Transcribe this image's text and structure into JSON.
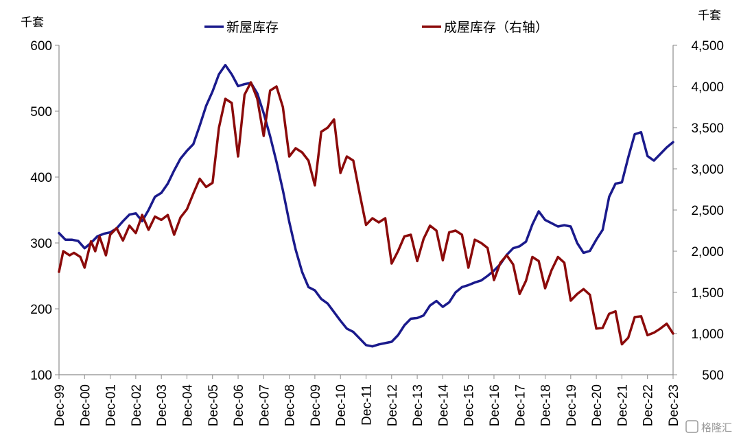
{
  "chart_data": {
    "type": "line",
    "left_unit": "千套",
    "right_unit": "千套",
    "y_left_lim": [
      100,
      600
    ],
    "y_right_lim": [
      500,
      4500
    ],
    "y_left_ticks": [
      100,
      200,
      300,
      400,
      500,
      600
    ],
    "y_right_ticks": [
      500,
      1000,
      1500,
      2000,
      2500,
      3000,
      3500,
      4000,
      4500
    ],
    "y_right_tick_labels": [
      "500",
      "1,000",
      "1,500",
      "2,000",
      "2,500",
      "3,000",
      "3,500",
      "4,000",
      "4,500"
    ],
    "x_ticks": [
      {
        "x": "1999-12",
        "label": "Dec-99"
      },
      {
        "x": "2000-12",
        "label": "Dec-00"
      },
      {
        "x": "2001-12",
        "label": "Dec-01"
      },
      {
        "x": "2002-12",
        "label": "Dec-02"
      },
      {
        "x": "2003-12",
        "label": "Dec-03"
      },
      {
        "x": "2004-12",
        "label": "Dec-04"
      },
      {
        "x": "2005-12",
        "label": "Dec-05"
      },
      {
        "x": "2006-12",
        "label": "Dec-06"
      },
      {
        "x": "2007-12",
        "label": "Dec-07"
      },
      {
        "x": "2008-12",
        "label": "Dec-08"
      },
      {
        "x": "2009-12",
        "label": "Dec-09"
      },
      {
        "x": "2010-12",
        "label": "Dec-10"
      },
      {
        "x": "2011-12",
        "label": "Dec-11"
      },
      {
        "x": "2012-12",
        "label": "Dec-12"
      },
      {
        "x": "2013-12",
        "label": "Dec-13"
      },
      {
        "x": "2014-12",
        "label": "Dec-14"
      },
      {
        "x": "2015-12",
        "label": "Dec-15"
      },
      {
        "x": "2016-12",
        "label": "Dec-16"
      },
      {
        "x": "2017-12",
        "label": "Dec-17"
      },
      {
        "x": "2018-12",
        "label": "Dec-18"
      },
      {
        "x": "2019-12",
        "label": "Dec-19"
      },
      {
        "x": "2020-12",
        "label": "Dec-20"
      },
      {
        "x": "2021-12",
        "label": "Dec-21"
      },
      {
        "x": "2022-12",
        "label": "Dec-22"
      },
      {
        "x": "2023-12",
        "label": "Dec-23"
      }
    ],
    "legend_position": "top-center",
    "grid": false,
    "series": [
      {
        "name": "新屋库存",
        "axis": "left",
        "color": "#1a1a8c",
        "points": [
          [
            "1999-12",
            315
          ],
          [
            "2000-03",
            305
          ],
          [
            "2000-06",
            305
          ],
          [
            "2000-09",
            303
          ],
          [
            "2000-12",
            292
          ],
          [
            "2001-03",
            300
          ],
          [
            "2001-06",
            310
          ],
          [
            "2001-09",
            314
          ],
          [
            "2001-12",
            316
          ],
          [
            "2002-03",
            322
          ],
          [
            "2002-06",
            333
          ],
          [
            "2002-09",
            343
          ],
          [
            "2002-12",
            345
          ],
          [
            "2003-03",
            333
          ],
          [
            "2003-06",
            350
          ],
          [
            "2003-09",
            370
          ],
          [
            "2003-12",
            376
          ],
          [
            "2004-03",
            390
          ],
          [
            "2004-06",
            410
          ],
          [
            "2004-09",
            428
          ],
          [
            "2004-12",
            440
          ],
          [
            "2005-03",
            450
          ],
          [
            "2005-06",
            478
          ],
          [
            "2005-09",
            508
          ],
          [
            "2005-12",
            530
          ],
          [
            "2006-03",
            556
          ],
          [
            "2006-06",
            570
          ],
          [
            "2006-09",
            556
          ],
          [
            "2006-12",
            538
          ],
          [
            "2007-03",
            541
          ],
          [
            "2007-06",
            543
          ],
          [
            "2007-09",
            527
          ],
          [
            "2007-12",
            497
          ],
          [
            "2008-03",
            462
          ],
          [
            "2008-06",
            423
          ],
          [
            "2008-09",
            380
          ],
          [
            "2008-12",
            332
          ],
          [
            "2009-03",
            290
          ],
          [
            "2009-06",
            256
          ],
          [
            "2009-09",
            233
          ],
          [
            "2009-12",
            228
          ],
          [
            "2010-03",
            215
          ],
          [
            "2010-06",
            208
          ],
          [
            "2010-09",
            195
          ],
          [
            "2010-12",
            182
          ],
          [
            "2011-03",
            170
          ],
          [
            "2011-06",
            165
          ],
          [
            "2011-09",
            155
          ],
          [
            "2011-12",
            145
          ],
          [
            "2012-03",
            143
          ],
          [
            "2012-06",
            146
          ],
          [
            "2012-09",
            148
          ],
          [
            "2012-12",
            150
          ],
          [
            "2013-03",
            160
          ],
          [
            "2013-06",
            175
          ],
          [
            "2013-09",
            185
          ],
          [
            "2013-12",
            186
          ],
          [
            "2014-03",
            190
          ],
          [
            "2014-06",
            205
          ],
          [
            "2014-09",
            212
          ],
          [
            "2014-12",
            203
          ],
          [
            "2015-03",
            210
          ],
          [
            "2015-06",
            225
          ],
          [
            "2015-09",
            233
          ],
          [
            "2015-12",
            236
          ],
          [
            "2016-03",
            240
          ],
          [
            "2016-06",
            243
          ],
          [
            "2016-09",
            250
          ],
          [
            "2016-12",
            258
          ],
          [
            "2017-03",
            268
          ],
          [
            "2017-06",
            282
          ],
          [
            "2017-09",
            292
          ],
          [
            "2017-12",
            295
          ],
          [
            "2018-03",
            302
          ],
          [
            "2018-06",
            328
          ],
          [
            "2018-09",
            348
          ],
          [
            "2018-12",
            335
          ],
          [
            "2019-03",
            330
          ],
          [
            "2019-06",
            325
          ],
          [
            "2019-09",
            327
          ],
          [
            "2019-12",
            325
          ],
          [
            "2020-03",
            300
          ],
          [
            "2020-06",
            285
          ],
          [
            "2020-09",
            288
          ],
          [
            "2020-12",
            305
          ],
          [
            "2021-03",
            320
          ],
          [
            "2021-06",
            370
          ],
          [
            "2021-09",
            390
          ],
          [
            "2021-12",
            392
          ],
          [
            "2022-03",
            430
          ],
          [
            "2022-06",
            465
          ],
          [
            "2022-09",
            468
          ],
          [
            "2022-12",
            432
          ],
          [
            "2023-03",
            425
          ],
          [
            "2023-06",
            435
          ],
          [
            "2023-09",
            445
          ],
          [
            "2023-12",
            453
          ]
        ]
      },
      {
        "name": "成屋库存（右轴）",
        "axis": "right",
        "color": "#8b0a0a",
        "points": [
          [
            "1999-12",
            1750
          ],
          [
            "2000-02",
            2000
          ],
          [
            "2000-05",
            1950
          ],
          [
            "2000-07",
            1980
          ],
          [
            "2000-10",
            1930
          ],
          [
            "2000-12",
            1800
          ],
          [
            "2001-03",
            2120
          ],
          [
            "2001-05",
            2000
          ],
          [
            "2001-07",
            2180
          ],
          [
            "2001-10",
            1950
          ],
          [
            "2001-12",
            2200
          ],
          [
            "2002-03",
            2280
          ],
          [
            "2002-06",
            2130
          ],
          [
            "2002-09",
            2310
          ],
          [
            "2002-12",
            2220
          ],
          [
            "2003-03",
            2440
          ],
          [
            "2003-06",
            2260
          ],
          [
            "2003-09",
            2420
          ],
          [
            "2003-12",
            2380
          ],
          [
            "2004-03",
            2440
          ],
          [
            "2004-06",
            2200
          ],
          [
            "2004-09",
            2410
          ],
          [
            "2004-12",
            2510
          ],
          [
            "2005-03",
            2700
          ],
          [
            "2005-06",
            2880
          ],
          [
            "2005-09",
            2780
          ],
          [
            "2005-12",
            2830
          ],
          [
            "2006-03",
            3500
          ],
          [
            "2006-06",
            3850
          ],
          [
            "2006-09",
            3800
          ],
          [
            "2006-12",
            3150
          ],
          [
            "2007-03",
            3900
          ],
          [
            "2007-06",
            4050
          ],
          [
            "2007-09",
            3850
          ],
          [
            "2007-12",
            3400
          ],
          [
            "2008-03",
            3950
          ],
          [
            "2008-06",
            4000
          ],
          [
            "2008-09",
            3750
          ],
          [
            "2008-12",
            3150
          ],
          [
            "2009-03",
            3250
          ],
          [
            "2009-06",
            3200
          ],
          [
            "2009-09",
            3100
          ],
          [
            "2009-12",
            2800
          ],
          [
            "2010-03",
            3450
          ],
          [
            "2010-06",
            3500
          ],
          [
            "2010-09",
            3600
          ],
          [
            "2010-12",
            2950
          ],
          [
            "2011-03",
            3150
          ],
          [
            "2011-06",
            3100
          ],
          [
            "2011-09",
            2700
          ],
          [
            "2011-12",
            2320
          ],
          [
            "2012-03",
            2400
          ],
          [
            "2012-06",
            2350
          ],
          [
            "2012-09",
            2400
          ],
          [
            "2012-12",
            1850
          ],
          [
            "2013-03",
            2000
          ],
          [
            "2013-06",
            2180
          ],
          [
            "2013-09",
            2200
          ],
          [
            "2013-12",
            1880
          ],
          [
            "2014-03",
            2150
          ],
          [
            "2014-06",
            2310
          ],
          [
            "2014-09",
            2250
          ],
          [
            "2014-12",
            1890
          ],
          [
            "2015-03",
            2230
          ],
          [
            "2015-06",
            2250
          ],
          [
            "2015-09",
            2200
          ],
          [
            "2015-12",
            1800
          ],
          [
            "2016-03",
            2140
          ],
          [
            "2016-06",
            2100
          ],
          [
            "2016-09",
            2040
          ],
          [
            "2016-12",
            1650
          ],
          [
            "2017-03",
            1860
          ],
          [
            "2017-06",
            1950
          ],
          [
            "2017-09",
            1840
          ],
          [
            "2017-12",
            1480
          ],
          [
            "2018-03",
            1640
          ],
          [
            "2018-06",
            1930
          ],
          [
            "2018-09",
            1880
          ],
          [
            "2018-12",
            1550
          ],
          [
            "2019-03",
            1770
          ],
          [
            "2019-06",
            1930
          ],
          [
            "2019-09",
            1860
          ],
          [
            "2019-12",
            1400
          ],
          [
            "2020-03",
            1480
          ],
          [
            "2020-06",
            1540
          ],
          [
            "2020-09",
            1470
          ],
          [
            "2020-12",
            1060
          ],
          [
            "2021-03",
            1070
          ],
          [
            "2021-06",
            1240
          ],
          [
            "2021-09",
            1270
          ],
          [
            "2021-12",
            870
          ],
          [
            "2022-03",
            950
          ],
          [
            "2022-06",
            1200
          ],
          [
            "2022-09",
            1210
          ],
          [
            "2022-12",
            980
          ],
          [
            "2023-03",
            1010
          ],
          [
            "2023-06",
            1060
          ],
          [
            "2023-09",
            1120
          ],
          [
            "2023-12",
            1000
          ]
        ]
      }
    ]
  },
  "watermark": "格隆汇"
}
